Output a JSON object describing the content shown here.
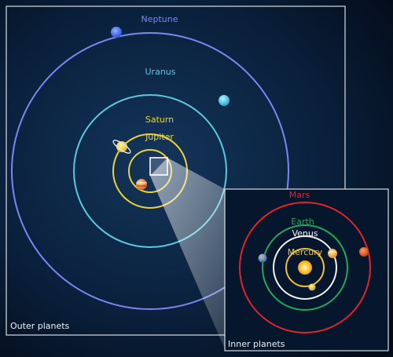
{
  "outer_panel": {
    "caption": "Outer planets",
    "orbits": [
      {
        "label": "Neptune",
        "color": "#7b86f2"
      },
      {
        "label": "Uranus",
        "color": "#5cc8dc"
      },
      {
        "label": "Saturn",
        "color": "#ead23a"
      },
      {
        "label": "Jupiter",
        "color": "#ead23a"
      }
    ]
  },
  "inner_panel": {
    "caption": "Inner planets",
    "orbits": [
      {
        "label": "Mars",
        "color": "#e1242a"
      },
      {
        "label": "Earth",
        "color": "#1fa85a"
      },
      {
        "label": "Venus",
        "color": "#f2f2f2"
      },
      {
        "label": "Mercury",
        "color": "#f2c12f"
      }
    ]
  },
  "colors": {
    "background": "#061326",
    "panel_border": "#d9dde4",
    "sun": "#fbb21c"
  },
  "icons": {
    "neptune": "neptune-icon",
    "uranus": "uranus-icon",
    "saturn": "saturn-icon",
    "jupiter": "jupiter-icon",
    "mars": "mars-icon",
    "earth": "earth-icon",
    "venus": "venus-icon",
    "mercury": "mercury-icon",
    "sun": "sun-icon"
  }
}
